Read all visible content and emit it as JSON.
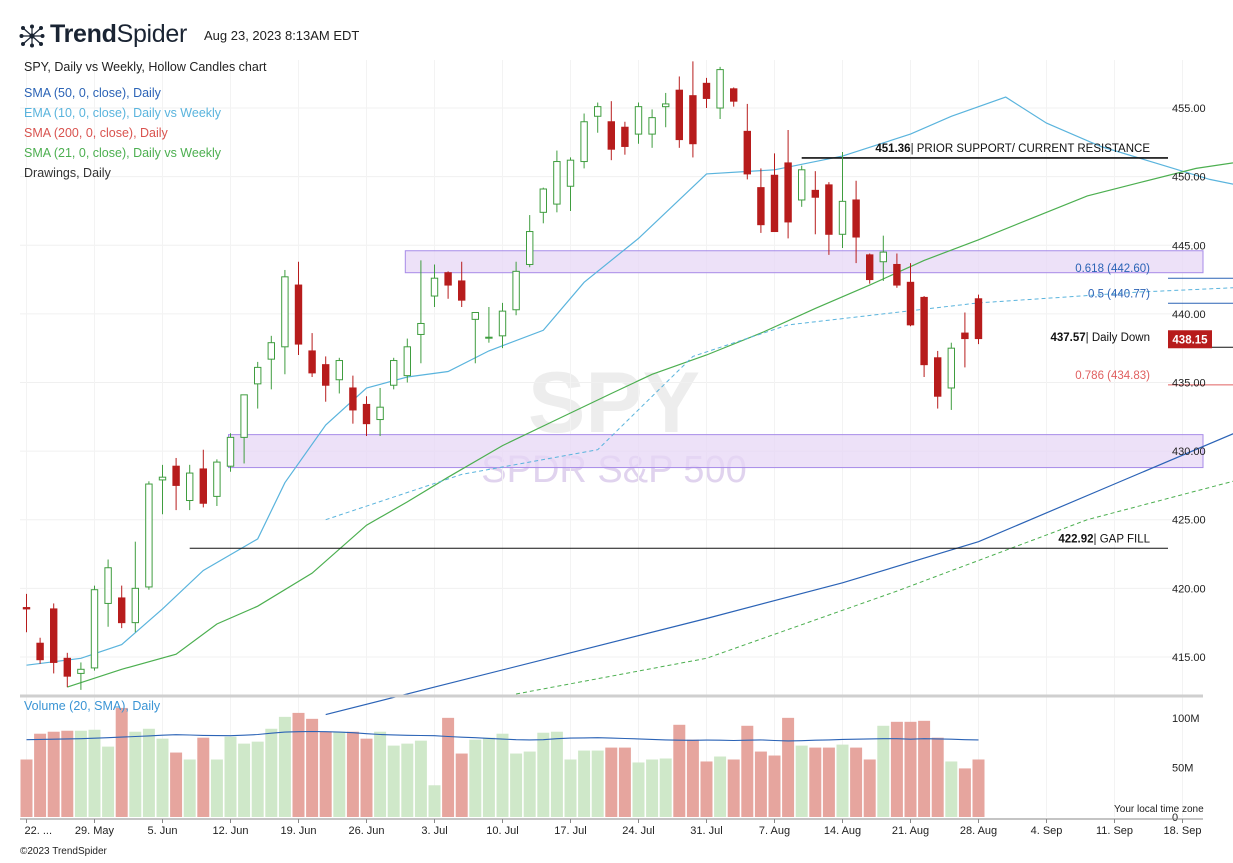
{
  "header": {
    "brand_bold": "Trend",
    "brand_light": "Spider",
    "timestamp": "Aug 23, 2023 8:13AM EDT",
    "chart_title": "SPY, Daily vs Weekly, Hollow Candles chart"
  },
  "indicators": [
    {
      "label": "SMA (50, 0, close), Daily",
      "color": "#2b63b6"
    },
    {
      "label": "EMA (10, 0, close), Daily vs Weekly",
      "color": "#5ab4dd"
    },
    {
      "label": "SMA (200, 0, close), Daily",
      "color": "#d9534f"
    },
    {
      "label": "SMA (21, 0, close), Daily vs Weekly",
      "color": "#4caf50"
    },
    {
      "label": "Drawings, Daily",
      "color": "#333333"
    }
  ],
  "footer": {
    "copyright": "©2023 TrendSpider",
    "timezone_note": "Your local time zone"
  },
  "watermark": {
    "symbol": "SPY",
    "name": "SPDR S&P 500"
  },
  "chart_data": {
    "type": "candlestick",
    "symbol": "SPY",
    "price_axis": {
      "ticks": [
        415,
        420,
        425,
        430,
        435,
        440,
        445,
        450,
        455
      ],
      "tick_labels": [
        "415.00",
        "420.00",
        "425.00",
        "430.00",
        "435.00",
        "440.00",
        "445.00",
        "450.00",
        "455.00"
      ],
      "range": [
        412.3,
        458.5
      ]
    },
    "volume_axis": {
      "tick_labels": [
        "100M",
        "50M",
        "0"
      ],
      "ticks": [
        100,
        50,
        0
      ],
      "unit": "M",
      "label": "Volume (20, SMA), Daily",
      "range": [
        0,
        118
      ]
    },
    "x_axis_labels": [
      "22. ...",
      "29. May",
      "5. Jun",
      "12. Jun",
      "19. Jun",
      "26. Jun",
      "3. Jul",
      "10. Jul",
      "17. Jul",
      "24. Jul",
      "31. Jul",
      "7. Aug",
      "14. Aug",
      "21. Aug",
      "28. Aug",
      "4. Sep",
      "11. Sep",
      "18. Sep"
    ],
    "x_axis_label_index": [
      0,
      5,
      10,
      15,
      20,
      25,
      30,
      35,
      40,
      45,
      50,
      55,
      60,
      65,
      70,
      75,
      80,
      85
    ],
    "current_price": {
      "value": 438.15,
      "label": "438.15",
      "color": "#b71c1c"
    },
    "candles": [
      {
        "o": 418.6,
        "h": 419.6,
        "l": 416.8,
        "c": 418.5,
        "v": 58
      },
      {
        "o": 416.0,
        "h": 416.4,
        "l": 414.5,
        "c": 414.8,
        "v": 84
      },
      {
        "o": 418.5,
        "h": 418.9,
        "l": 413.8,
        "c": 414.6,
        "v": 86
      },
      {
        "o": 414.9,
        "h": 415.3,
        "l": 412.8,
        "c": 413.6,
        "v": 87
      },
      {
        "o": 413.8,
        "h": 414.6,
        "l": 412.6,
        "c": 414.1,
        "v": 87
      },
      {
        "o": 414.2,
        "h": 420.2,
        "l": 414.0,
        "c": 419.9,
        "v": 88
      },
      {
        "o": 418.9,
        "h": 422.1,
        "l": 417.2,
        "c": 421.5,
        "v": 71
      },
      {
        "o": 419.3,
        "h": 420.2,
        "l": 417.1,
        "c": 417.5,
        "v": 110
      },
      {
        "o": 417.5,
        "h": 423.4,
        "l": 416.8,
        "c": 420.0,
        "v": 86
      },
      {
        "o": 420.1,
        "h": 427.8,
        "l": 419.9,
        "c": 427.6,
        "v": 89
      },
      {
        "o": 427.9,
        "h": 429.0,
        "l": 425.4,
        "c": 428.1,
        "v": 79
      },
      {
        "o": 428.9,
        "h": 429.5,
        "l": 425.7,
        "c": 427.5,
        "v": 65
      },
      {
        "o": 426.4,
        "h": 429.0,
        "l": 425.7,
        "c": 428.4,
        "v": 58
      },
      {
        "o": 428.7,
        "h": 430.1,
        "l": 425.9,
        "c": 426.2,
        "v": 80
      },
      {
        "o": 426.7,
        "h": 429.4,
        "l": 426.0,
        "c": 429.2,
        "v": 58
      },
      {
        "o": 428.9,
        "h": 431.3,
        "l": 428.5,
        "c": 431.0,
        "v": 81
      },
      {
        "o": 431.0,
        "h": 434.0,
        "l": 429.1,
        "c": 434.1,
        "v": 74
      },
      {
        "o": 434.9,
        "h": 436.5,
        "l": 433.1,
        "c": 436.1,
        "v": 76
      },
      {
        "o": 436.7,
        "h": 438.4,
        "l": 434.5,
        "c": 437.9,
        "v": 89
      },
      {
        "o": 437.6,
        "h": 443.2,
        "l": 435.6,
        "c": 442.7,
        "v": 101
      },
      {
        "o": 442.1,
        "h": 443.8,
        "l": 437.0,
        "c": 437.8,
        "v": 105
      },
      {
        "o": 437.3,
        "h": 438.6,
        "l": 435.4,
        "c": 435.7,
        "v": 99
      },
      {
        "o": 436.3,
        "h": 436.9,
        "l": 433.6,
        "c": 434.8,
        "v": 86
      },
      {
        "o": 435.2,
        "h": 436.8,
        "l": 434.2,
        "c": 436.6,
        "v": 86
      },
      {
        "o": 434.6,
        "h": 435.5,
        "l": 432.0,
        "c": 433.0,
        "v": 86
      },
      {
        "o": 433.4,
        "h": 434.0,
        "l": 431.1,
        "c": 432.0,
        "v": 79
      },
      {
        "o": 432.3,
        "h": 434.6,
        "l": 431.1,
        "c": 433.2,
        "v": 86
      },
      {
        "o": 434.8,
        "h": 436.8,
        "l": 434.5,
        "c": 436.6,
        "v": 72
      },
      {
        "o": 435.5,
        "h": 438.2,
        "l": 435.0,
        "c": 437.6,
        "v": 74
      },
      {
        "o": 438.5,
        "h": 443.9,
        "l": 436.4,
        "c": 439.3,
        "v": 77
      },
      {
        "o": 441.3,
        "h": 443.6,
        "l": 440.5,
        "c": 442.6,
        "v": 32
      },
      {
        "o": 443.0,
        "h": 443.1,
        "l": 441.1,
        "c": 442.1,
        "v": 100
      },
      {
        "o": 442.4,
        "h": 443.8,
        "l": 440.5,
        "c": 441.0,
        "v": 64
      },
      {
        "o": 439.6,
        "h": 440.1,
        "l": 436.4,
        "c": 440.1,
        "v": 78
      },
      {
        "o": 438.3,
        "h": 440.5,
        "l": 437.9,
        "c": 438.3,
        "v": 80
      },
      {
        "o": 438.4,
        "h": 440.8,
        "l": 437.5,
        "c": 440.2,
        "v": 84
      },
      {
        "o": 440.3,
        "h": 443.8,
        "l": 439.9,
        "c": 443.1,
        "v": 64
      },
      {
        "o": 443.6,
        "h": 447.2,
        "l": 443.4,
        "c": 446.0,
        "v": 66
      },
      {
        "o": 447.4,
        "h": 449.2,
        "l": 446.6,
        "c": 449.1,
        "v": 85
      },
      {
        "o": 448.0,
        "h": 451.9,
        "l": 447.4,
        "c": 451.1,
        "v": 86
      },
      {
        "o": 449.3,
        "h": 451.4,
        "l": 447.5,
        "c": 451.2,
        "v": 58
      },
      {
        "o": 451.1,
        "h": 454.6,
        "l": 450.6,
        "c": 454.0,
        "v": 67
      },
      {
        "o": 454.4,
        "h": 455.4,
        "l": 453.2,
        "c": 455.1,
        "v": 67
      },
      {
        "o": 454.0,
        "h": 455.5,
        "l": 451.2,
        "c": 452.0,
        "v": 70
      },
      {
        "o": 453.6,
        "h": 454.0,
        "l": 451.6,
        "c": 452.2,
        "v": 70
      },
      {
        "o": 453.1,
        "h": 455.4,
        "l": 452.4,
        "c": 455.1,
        "v": 55
      },
      {
        "o": 453.1,
        "h": 454.9,
        "l": 452.1,
        "c": 454.3,
        "v": 58
      },
      {
        "o": 455.1,
        "h": 456.1,
        "l": 453.6,
        "c": 455.3,
        "v": 59
      },
      {
        "o": 456.3,
        "h": 457.3,
        "l": 452.1,
        "c": 452.7,
        "v": 93
      },
      {
        "o": 455.9,
        "h": 458.4,
        "l": 451.4,
        "c": 452.4,
        "v": 78
      },
      {
        "o": 456.8,
        "h": 457.2,
        "l": 455.0,
        "c": 455.7,
        "v": 56
      },
      {
        "o": 455.0,
        "h": 458.0,
        "l": 454.2,
        "c": 457.8,
        "v": 61
      },
      {
        "o": 456.4,
        "h": 456.5,
        "l": 455.1,
        "c": 455.5,
        "v": 58
      },
      {
        "o": 453.3,
        "h": 455.3,
        "l": 449.8,
        "c": 450.2,
        "v": 92
      },
      {
        "o": 449.2,
        "h": 450.6,
        "l": 445.9,
        "c": 446.5,
        "v": 66
      },
      {
        "o": 450.1,
        "h": 451.7,
        "l": 446.1,
        "c": 446.0,
        "v": 62
      },
      {
        "o": 451.0,
        "h": 453.4,
        "l": 445.5,
        "c": 446.7,
        "v": 100
      },
      {
        "o": 448.3,
        "h": 450.8,
        "l": 447.8,
        "c": 450.5,
        "v": 72
      },
      {
        "o": 449.0,
        "h": 450.4,
        "l": 445.8,
        "c": 448.5,
        "v": 70
      },
      {
        "o": 449.4,
        "h": 449.6,
        "l": 444.3,
        "c": 445.8,
        "v": 70
      },
      {
        "o": 445.8,
        "h": 451.8,
        "l": 444.8,
        "c": 448.2,
        "v": 73
      },
      {
        "o": 448.3,
        "h": 449.7,
        "l": 443.7,
        "c": 445.6,
        "v": 70
      },
      {
        "o": 444.3,
        "h": 444.4,
        "l": 442.2,
        "c": 442.5,
        "v": 58
      },
      {
        "o": 443.8,
        "h": 445.7,
        "l": 442.4,
        "c": 444.5,
        "v": 92
      },
      {
        "o": 443.6,
        "h": 444.4,
        "l": 441.9,
        "c": 442.1,
        "v": 96
      },
      {
        "o": 442.3,
        "h": 443.7,
        "l": 439.1,
        "c": 439.2,
        "v": 96
      },
      {
        "o": 441.2,
        "h": 441.3,
        "l": 435.4,
        "c": 436.3,
        "v": 97
      },
      {
        "o": 436.8,
        "h": 437.3,
        "l": 433.1,
        "c": 434.0,
        "v": 80
      },
      {
        "o": 434.6,
        "h": 437.9,
        "l": 433.0,
        "c": 437.5,
        "v": 56
      },
      {
        "o": 438.6,
        "h": 440.1,
        "l": 436.1,
        "c": 438.2,
        "v": 49
      },
      {
        "o": 441.1,
        "h": 441.4,
        "l": 437.8,
        "c": 438.2,
        "v": 58
      }
    ],
    "volume_sma": [
      78,
      78.3,
      78.5,
      78.8,
      79,
      79.5,
      80,
      80.6,
      81.2,
      81.8,
      82.5,
      83,
      82.7,
      82.3,
      82.1,
      82,
      82.5,
      83.2,
      84.5,
      85.6,
      86,
      86.2,
      86,
      85.6,
      85,
      84,
      83.2,
      82.8,
      82.4,
      82.2,
      82,
      81.2,
      80.5,
      80,
      79.3,
      78.6,
      78,
      77.8,
      78,
      79,
      79.6,
      79.8,
      80,
      79.6,
      79.2,
      78.8,
      78.3,
      77.8,
      77.5,
      77.4,
      77.6,
      77.5,
      77.2,
      77.5,
      77.8,
      77.2,
      76.8,
      77,
      77.5,
      77.8,
      78.3,
      78.5,
      78.8,
      79,
      79,
      78.5,
      79,
      78.8,
      78.5,
      78,
      77.8
    ],
    "ma_series": [
      {
        "name": "SMA (50, 0, close), Daily",
        "color": "#2b63b6",
        "style": "solid",
        "points": [
          [
            22,
            410.8
          ],
          [
            30,
            412.8
          ],
          [
            40,
            415.3
          ],
          [
            50,
            417.8
          ],
          [
            60,
            420.4
          ],
          [
            70,
            423.4
          ],
          [
            80,
            427.6
          ],
          [
            90,
            431.8
          ],
          [
            100,
            435.8
          ],
          [
            110,
            439.0
          ],
          [
            117,
            440.5
          ],
          [
            122,
            441.7
          ],
          [
            128,
            443.2
          ],
          [
            132,
            443.8
          ],
          [
            137,
            444.2
          ],
          [
            140,
            444.5
          ]
        ]
      },
      {
        "name": "EMA (10, 0, close), Daily vs Weekly",
        "color": "#5ab4dd",
        "style": "solid",
        "points": [
          [
            0,
            414.4
          ],
          [
            4,
            414.9
          ],
          [
            7,
            415.9
          ],
          [
            10,
            418.5
          ],
          [
            13,
            421.3
          ],
          [
            17,
            423.6
          ],
          [
            19,
            427.7
          ],
          [
            22,
            431.9
          ],
          [
            25,
            434.6
          ],
          [
            28,
            435.4
          ],
          [
            31,
            435.8
          ],
          [
            34,
            437.3
          ],
          [
            38,
            438.8
          ],
          [
            41,
            442.3
          ],
          [
            45,
            445.5
          ],
          [
            50,
            450.2
          ],
          [
            55,
            450.5
          ],
          [
            60,
            451.5
          ],
          [
            65,
            453.1
          ],
          [
            68,
            454.4
          ],
          [
            72,
            455.8
          ],
          [
            75,
            453.9
          ],
          [
            79,
            452.2
          ],
          [
            83,
            451.0
          ],
          [
            87,
            449.8
          ],
          [
            91,
            449.0
          ],
          [
            94,
            448.0
          ],
          [
            97,
            446.4
          ],
          [
            100,
            444.9
          ],
          [
            103,
            443.7
          ],
          [
            106,
            442.2
          ],
          [
            109,
            441.8
          ]
        ]
      },
      {
        "name": "SMA (21, 0, close), Daily vs Weekly",
        "color": "#4caf50",
        "style": "solid",
        "points": [
          [
            3,
            412.8
          ],
          [
            7,
            414.1
          ],
          [
            11,
            415.2
          ],
          [
            14,
            417.4
          ],
          [
            17,
            418.7
          ],
          [
            21,
            421.1
          ],
          [
            25,
            424.6
          ],
          [
            28,
            426.3
          ],
          [
            31,
            428.1
          ],
          [
            35,
            430.4
          ],
          [
            39,
            432.3
          ],
          [
            43,
            434.2
          ],
          [
            46,
            435.6
          ],
          [
            50,
            437.0
          ],
          [
            54,
            438.6
          ],
          [
            58,
            440.4
          ],
          [
            62,
            442.1
          ],
          [
            66,
            443.9
          ],
          [
            70,
            445.4
          ],
          [
            74,
            447.0
          ],
          [
            78,
            448.6
          ],
          [
            82,
            449.6
          ],
          [
            86,
            450.6
          ],
          [
            90,
            451.2
          ],
          [
            93,
            451.5
          ],
          [
            97,
            451.4
          ],
          [
            101,
            450.8
          ],
          [
            104,
            449.9
          ],
          [
            107,
            448.6
          ],
          [
            110,
            447.2
          ]
        ]
      },
      {
        "name": "EMA (10, 0, close), Weekly",
        "color": "#5ab4dd",
        "style": "dashed",
        "points": [
          [
            22,
            425.0
          ],
          [
            32,
            428.3
          ],
          [
            42,
            430.1
          ],
          [
            49,
            436.9
          ],
          [
            56,
            439.2
          ],
          [
            70,
            440.8
          ],
          [
            82,
            441.6
          ],
          [
            91,
            442.0
          ],
          [
            102,
            440.8
          ],
          [
            109,
            440.5
          ]
        ]
      },
      {
        "name": "SMA (21, 0, close), Weekly",
        "color": "#4caf50",
        "style": "dashed",
        "points": [
          [
            36,
            412.3
          ],
          [
            50,
            414.9
          ],
          [
            64,
            419.8
          ],
          [
            78,
            425.0
          ],
          [
            91,
            428.4
          ],
          [
            99,
            429.9
          ],
          [
            109,
            430.6
          ]
        ]
      }
    ],
    "zones": [
      {
        "label": "zone-upper",
        "low": 443.0,
        "high": 444.6,
        "x_start": 28,
        "x_end": 114,
        "color": "#e7d7f6",
        "stroke": "#a78be8"
      },
      {
        "label": "zone-lower",
        "low": 428.8,
        "high": 431.2,
        "x_start": 15,
        "x_end": 148,
        "color": "#e7d7f6",
        "stroke": "#a78be8"
      }
    ],
    "levels": [
      {
        "value": 451.36,
        "value_label": "451.36",
        "text": "| PRIOR SUPPORT/ CURRENT RESISTANCE",
        "x_start": 57,
        "color": "#111111",
        "width": 1.6
      },
      {
        "value": 442.6,
        "value_label": "",
        "text": "0.618 (442.60)",
        "x_start": 102,
        "color": "#2b63b6",
        "width": 1
      },
      {
        "value": 440.77,
        "value_label": "",
        "text": "0.5 (440.77)",
        "x_start": 102,
        "color": "#2b63b6",
        "width": 1
      },
      {
        "value": 437.57,
        "value_label": "437.57",
        "text": "| Daily Down",
        "x_start": 112,
        "color": "#111111",
        "width": 1
      },
      {
        "value": 434.83,
        "value_label": "",
        "text": "0.786 (434.83)",
        "x_start": 108,
        "color": "#e06060",
        "width": 1
      },
      {
        "value": 422.92,
        "value_label": "422.92",
        "text": "| GAP FILL",
        "x_start": 12,
        "color": "#111111",
        "width": 1
      }
    ],
    "fib_dashes": [
      {
        "points": [
          [
            103,
            447.4
          ],
          [
            108,
            433.0
          ]
        ],
        "color": "#222222"
      },
      {
        "points": [
          [
            108,
            433.0
          ],
          [
            112,
            441.0
          ]
        ],
        "color": "#e06060"
      }
    ],
    "markers": [
      {
        "x": 109,
        "value": 440.5,
        "color": "#5ab4dd"
      },
      {
        "x": 109,
        "value": 430.6,
        "color": "#4caf50"
      }
    ]
  }
}
